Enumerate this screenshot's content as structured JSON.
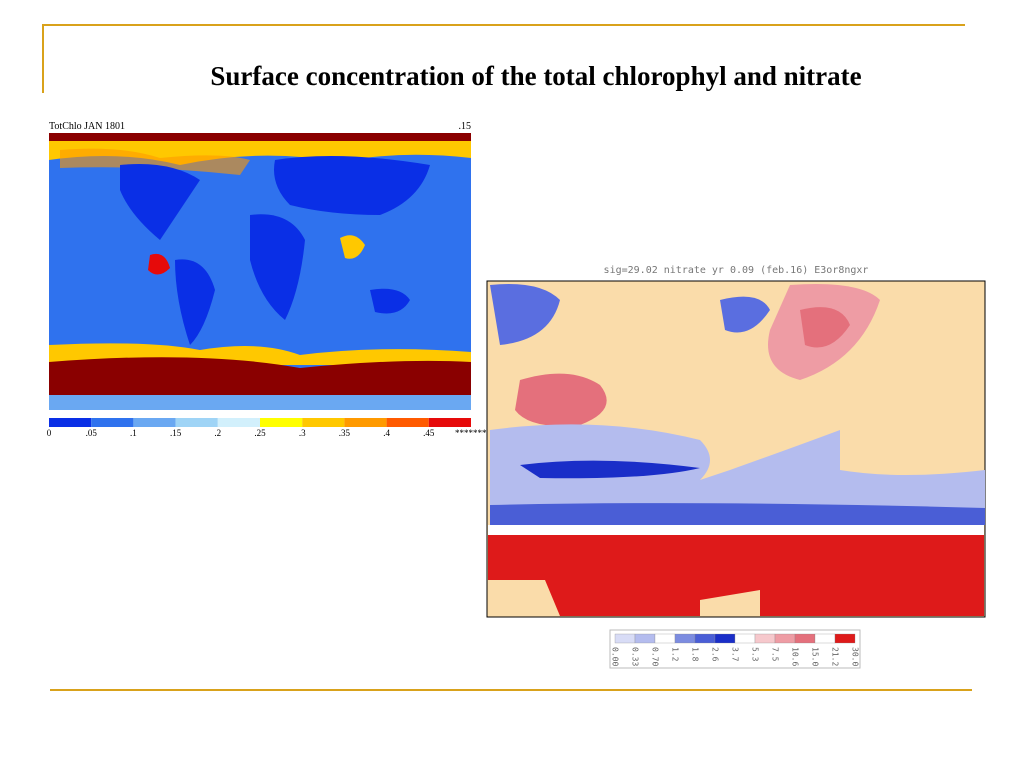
{
  "title": "Surface concentration of the total chlorophyl and nitrate",
  "left_map": {
    "header_left": "TotChlo JAN 1801",
    "header_right": ".15",
    "colorbar": {
      "labels": [
        "0",
        ".05",
        ".1",
        ".15",
        ".2",
        ".25",
        ".3",
        ".35",
        ".4",
        ".45",
        "********"
      ],
      "colors": [
        "#0a2fe6",
        "#2f72ee",
        "#6aa8f2",
        "#9fd4f6",
        "#d2f0fc",
        "#ffff00",
        "#ffc800",
        "#ff9a00",
        "#ff5a00",
        "#e60a0a",
        "#8a0000"
      ]
    }
  },
  "right_map": {
    "header": "sig=29.02 nitrate      yr   0.09 (feb.16) E3or8ngxr",
    "colorbar": {
      "labels": [
        "0.00",
        "0.33",
        "0.70",
        "1.2",
        "1.8",
        "2.6",
        "3.7",
        "5.3",
        "7.5",
        "10.6",
        "15.0",
        "21.2",
        "30.0"
      ],
      "colors": [
        "#d8dcf6",
        "#b4bcee",
        "#ffffff",
        "#7c8ce0",
        "#4a5ed6",
        "#1a2ec8",
        "#ffffff",
        "#f6c8cc",
        "#ee9ca4",
        "#e4707c",
        "#ffffff",
        "#de1a1a"
      ]
    }
  }
}
